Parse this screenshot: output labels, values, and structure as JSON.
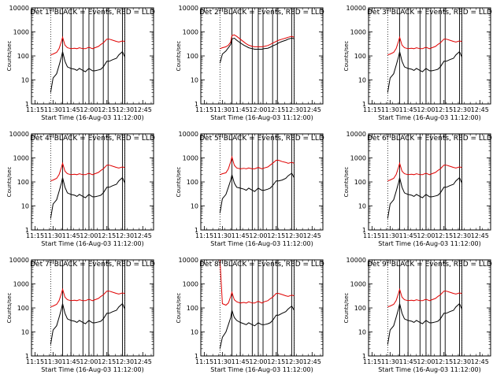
{
  "chart_data": {
    "type": "line",
    "layout": "3x3 grid",
    "x_ticks": [
      "11:15",
      "11:30",
      "11:45",
      "12:00",
      "12:15",
      "12:30",
      "12:45"
    ],
    "x_tick_minutes": [
      15,
      30,
      45,
      60,
      75,
      90,
      105
    ],
    "xlim_minutes": [
      12,
      114
    ],
    "xlabel": "Start Time (16-Aug-03 11:12:00)",
    "ylabel": "Counts/sec",
    "yscale": "log",
    "ylim": [
      1,
      10000
    ],
    "y_ticks": [
      "1",
      "10",
      "100",
      "1000",
      "10000"
    ],
    "y_tick_values": [
      1,
      10,
      100,
      1000,
      10000
    ],
    "dotted_markers_minutes": [
      28,
      90
    ],
    "solid_markers_minutes": [
      38,
      45,
      55,
      60,
      64,
      72,
      76,
      88,
      90
    ],
    "series_colors": {
      "events": "#000000",
      "lld": "#e00000"
    },
    "x_samples_minutes": [
      28,
      30,
      33,
      35,
      37,
      38,
      40,
      42,
      45,
      48,
      50,
      52,
      55,
      57,
      60,
      63,
      65,
      68,
      70,
      72,
      75,
      77,
      80,
      83,
      85,
      88,
      90
    ],
    "panels": [
      {
        "title": "Det 1f BLACK = Events, RED = LLD",
        "events": [
          3,
          12,
          18,
          40,
          90,
          150,
          60,
          35,
          30,
          28,
          25,
          30,
          25,
          22,
          30,
          24,
          24,
          26,
          28,
          35,
          60,
          60,
          70,
          80,
          110,
          150,
          90
        ],
        "lld": [
          110,
          120,
          140,
          200,
          400,
          600,
          280,
          220,
          200,
          210,
          200,
          220,
          200,
          200,
          230,
          200,
          220,
          250,
          300,
          350,
          500,
          500,
          450,
          400,
          380,
          420,
          400
        ]
      },
      {
        "title": "Det 2f BLACK = Events, RED = LLD",
        "events": [
          50,
          120,
          160,
          220,
          300,
          500,
          550,
          450,
          350,
          280,
          250,
          220,
          200,
          190,
          190,
          190,
          200,
          210,
          230,
          260,
          300,
          350,
          400,
          450,
          500,
          550,
          520
        ],
        "lld": [
          200,
          220,
          240,
          280,
          380,
          700,
          750,
          650,
          500,
          380,
          320,
          280,
          250,
          240,
          240,
          240,
          250,
          270,
          300,
          340,
          400,
          450,
          500,
          550,
          600,
          650,
          600
        ]
      },
      {
        "title": "Det 3f BLACK = Events, RED = LLD",
        "events": [
          3,
          12,
          18,
          40,
          90,
          150,
          60,
          35,
          30,
          28,
          25,
          30,
          25,
          22,
          30,
          24,
          24,
          26,
          28,
          35,
          60,
          60,
          70,
          80,
          110,
          150,
          90
        ],
        "lld": [
          110,
          120,
          140,
          200,
          400,
          600,
          280,
          220,
          200,
          210,
          200,
          220,
          200,
          200,
          230,
          200,
          220,
          250,
          300,
          350,
          500,
          500,
          450,
          400,
          380,
          420,
          400
        ]
      },
      {
        "title": "Det 4f BLACK = Events, RED = LLD",
        "events": [
          3,
          12,
          18,
          40,
          90,
          150,
          60,
          35,
          30,
          28,
          25,
          30,
          25,
          22,
          30,
          24,
          24,
          26,
          28,
          35,
          60,
          60,
          70,
          80,
          110,
          150,
          90
        ],
        "lld": [
          110,
          120,
          140,
          200,
          400,
          600,
          280,
          220,
          200,
          210,
          200,
          220,
          200,
          200,
          230,
          200,
          220,
          250,
          300,
          350,
          500,
          500,
          450,
          400,
          380,
          420,
          400
        ]
      },
      {
        "title": "Det 5f BLACK = Events, RED = LLD",
        "events": [
          5,
          20,
          30,
          60,
          120,
          200,
          90,
          60,
          55,
          50,
          45,
          55,
          45,
          40,
          55,
          45,
          45,
          50,
          55,
          70,
          110,
          110,
          120,
          140,
          180,
          230,
          150
        ],
        "lld": [
          200,
          220,
          240,
          350,
          700,
          1100,
          500,
          380,
          350,
          370,
          350,
          380,
          350,
          350,
          400,
          350,
          380,
          420,
          500,
          600,
          800,
          800,
          700,
          650,
          600,
          650,
          600
        ]
      },
      {
        "title": "Det 6f BLACK = Events, RED = LLD",
        "events": [
          3,
          12,
          18,
          40,
          90,
          150,
          60,
          35,
          30,
          28,
          25,
          30,
          25,
          22,
          30,
          24,
          24,
          26,
          28,
          35,
          60,
          60,
          70,
          80,
          110,
          150,
          90
        ],
        "lld": [
          110,
          120,
          140,
          200,
          400,
          600,
          280,
          220,
          200,
          210,
          200,
          220,
          200,
          200,
          230,
          200,
          220,
          250,
          300,
          350,
          500,
          500,
          450,
          400,
          380,
          420,
          400
        ]
      },
      {
        "title": "Det 7f BLACK = Events, RED = LLD",
        "events": [
          3,
          12,
          18,
          40,
          90,
          150,
          60,
          35,
          30,
          28,
          25,
          30,
          25,
          22,
          30,
          24,
          24,
          26,
          28,
          35,
          60,
          60,
          70,
          80,
          110,
          150,
          90
        ],
        "lld": [
          110,
          120,
          140,
          200,
          400,
          600,
          280,
          220,
          200,
          210,
          200,
          220,
          200,
          200,
          230,
          200,
          220,
          250,
          300,
          350,
          500,
          500,
          450,
          400,
          380,
          420,
          400
        ]
      },
      {
        "title": "Det 8f BLACK = Events, RED = LLD",
        "events": [
          2,
          6,
          10,
          20,
          40,
          80,
          40,
          30,
          25,
          22,
          20,
          24,
          20,
          18,
          24,
          20,
          20,
          22,
          24,
          30,
          50,
          50,
          60,
          70,
          90,
          120,
          80
        ],
        "lld": [
          10000,
          150,
          130,
          160,
          300,
          450,
          220,
          180,
          160,
          170,
          160,
          180,
          160,
          160,
          190,
          160,
          180,
          200,
          240,
          280,
          400,
          400,
          360,
          320,
          300,
          340,
          320
        ]
      },
      {
        "title": "Det 9f BLACK = Events, RED = LLD",
        "events": [
          3,
          12,
          18,
          40,
          90,
          150,
          60,
          35,
          30,
          28,
          25,
          30,
          25,
          22,
          30,
          24,
          24,
          26,
          28,
          35,
          60,
          60,
          70,
          80,
          110,
          150,
          90
        ],
        "lld": [
          110,
          120,
          140,
          200,
          400,
          600,
          280,
          220,
          200,
          210,
          200,
          220,
          200,
          200,
          230,
          200,
          220,
          250,
          300,
          350,
          500,
          500,
          450,
          400,
          380,
          420,
          400
        ]
      }
    ]
  }
}
